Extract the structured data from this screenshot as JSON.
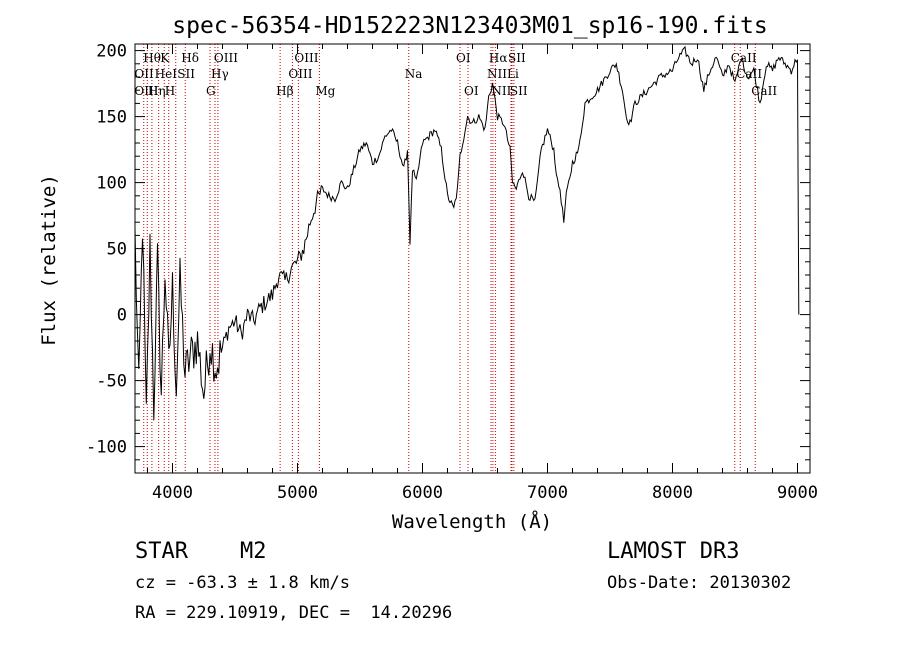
{
  "chart_data": {
    "type": "line",
    "title": "spec-56354-HD152223N123403M01_sp16-190.fits",
    "xlabel": "Wavelength (Å)",
    "ylabel": "Flux (relative)",
    "xlim": [
      3700,
      9100
    ],
    "ylim": [
      -120,
      205
    ],
    "xticks": [
      4000,
      5000,
      6000,
      7000,
      8000,
      9000
    ],
    "yticks": [
      -100,
      -50,
      0,
      50,
      100,
      150,
      200
    ],
    "grid": false,
    "legend": "none",
    "series": [
      {
        "x": [
          3700,
          3730,
          3760,
          3790,
          3820,
          3850,
          3880,
          3910,
          3940,
          3970,
          4000,
          4030,
          4060,
          4100,
          4150,
          4200,
          4250,
          4300,
          4350,
          4400,
          4450,
          4500,
          4550,
          4600,
          4650,
          4700,
          4750,
          4800,
          4850,
          4900,
          4950,
          5000,
          5050,
          5100,
          5150,
          5200,
          5250,
          5300,
          5350,
          5400,
          5450,
          5500,
          5550,
          5600,
          5650,
          5700,
          5750,
          5800,
          5850,
          5880,
          5900,
          5920,
          5950,
          6000,
          6050,
          6100,
          6150,
          6200,
          6250,
          6280,
          6300,
          6330,
          6360,
          6400,
          6450,
          6500,
          6530,
          6560,
          6600,
          6650,
          6700,
          6720,
          6750,
          6800,
          6850,
          6900,
          6950,
          7000,
          7050,
          7080,
          7100,
          7130,
          7150,
          7200,
          7250,
          7300,
          7400,
          7500,
          7550,
          7600,
          7630,
          7660,
          7700,
          7800,
          7900,
          8000,
          8050,
          8100,
          8150,
          8200,
          8250,
          8300,
          8350,
          8400,
          8450,
          8500,
          8550,
          8600,
          8650,
          8700,
          8750,
          8800,
          8850,
          8900,
          8950,
          9000,
          9010
        ],
        "y": [
          60,
          -60,
          70,
          -80,
          50,
          -70,
          40,
          -60,
          35,
          -40,
          20,
          -55,
          25,
          -45,
          -30,
          -20,
          -60,
          -20,
          -40,
          -25,
          -10,
          -5,
          -15,
          0,
          -5,
          5,
          10,
          15,
          30,
          25,
          35,
          40,
          50,
          70,
          85,
          95,
          90,
          88,
          100,
          95,
          110,
          125,
          130,
          115,
          120,
          135,
          140,
          130,
          110,
          125,
          55,
          110,
          100,
          130,
          135,
          140,
          125,
          90,
          80,
          95,
          120,
          135,
          150,
          145,
          150,
          140,
          165,
          175,
          150,
          145,
          125,
          100,
          95,
          110,
          90,
          85,
          125,
          140,
          125,
          100,
          95,
          70,
          90,
          115,
          125,
          160,
          170,
          185,
          190,
          170,
          150,
          145,
          160,
          170,
          180,
          185,
          195,
          200,
          190,
          195,
          170,
          185,
          195,
          180,
          190,
          175,
          195,
          180,
          185,
          160,
          190,
          185,
          195,
          190,
          185,
          195,
          0
        ]
      }
    ],
    "line_marker_x": [
      3770,
      3798,
      3835,
      3889,
      3934,
      3970,
      4026,
      4102,
      4300,
      4340,
      4363,
      4861,
      4959,
      5007,
      5175,
      5890,
      6300,
      6364,
      6548,
      6563,
      6583,
      6708,
      6716,
      6731,
      8498,
      8542,
      8662
    ],
    "line_labels": [
      {
        "text": "Hθ",
        "x": 3798,
        "row": 1
      },
      {
        "text": "K",
        "x": 3934,
        "row": 1
      },
      {
        "text": "Hδ",
        "x": 4102,
        "row": 1
      },
      {
        "text": "OIII",
        "x": 4363,
        "row": 1
      },
      {
        "text": "OIII",
        "x": 5007,
        "row": 1
      },
      {
        "text": "OI",
        "x": 6300,
        "row": 1
      },
      {
        "text": "Hα",
        "x": 6563,
        "row": 1
      },
      {
        "text": "SII",
        "x": 6716,
        "row": 1
      },
      {
        "text": "CaII",
        "x": 8498,
        "row": 1
      },
      {
        "text": "OII",
        "x": 3727,
        "row": 2
      },
      {
        "text": "HeI",
        "x": 3889,
        "row": 2
      },
      {
        "text": "SII",
        "x": 4070,
        "row": 2
      },
      {
        "text": "Hγ",
        "x": 4340,
        "row": 2
      },
      {
        "text": "OIII",
        "x": 4959,
        "row": 2
      },
      {
        "text": "Na",
        "x": 5890,
        "row": 2
      },
      {
        "text": "NII",
        "x": 6548,
        "row": 2
      },
      {
        "text": "Li",
        "x": 6708,
        "row": 2
      },
      {
        "text": "CaII",
        "x": 8542,
        "row": 2
      },
      {
        "text": "OIII",
        "x": 3727,
        "row": 3
      },
      {
        "text": "Hη",
        "x": 3835,
        "row": 3
      },
      {
        "text": "H",
        "x": 3970,
        "row": 3
      },
      {
        "text": "G",
        "x": 4300,
        "row": 3
      },
      {
        "text": "Hβ",
        "x": 4861,
        "row": 3
      },
      {
        "text": "Mg",
        "x": 5175,
        "row": 3
      },
      {
        "text": "OI",
        "x": 6364,
        "row": 3
      },
      {
        "text": "NII",
        "x": 6583,
        "row": 3
      },
      {
        "text": "SII",
        "x": 6731,
        "row": 3
      },
      {
        "text": "CaII",
        "x": 8662,
        "row": 3
      }
    ],
    "colors": {
      "line": "#000000",
      "markers": "#cc0000",
      "background": "#ffffff"
    }
  },
  "info": {
    "class": "STAR",
    "subclass": "M2",
    "survey": "LAMOST DR3",
    "cz": "cz = -63.3 ± 1.8 km/s",
    "obs_date": "Obs-Date: 20130302",
    "radec": "RA = 229.10919, DEC =  14.20296"
  }
}
